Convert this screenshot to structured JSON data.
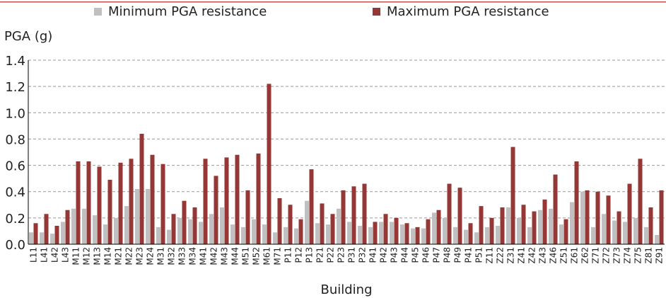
{
  "chart_data": {
    "type": "bar",
    "y_label": "PGA (g)",
    "x_label": "Building",
    "categories": [
      "L11",
      "L41",
      "L42",
      "L43",
      "M11",
      "M12",
      "M13",
      "M14",
      "M21",
      "M22",
      "M23",
      "M24",
      "M31",
      "M32",
      "M33",
      "M34",
      "M41",
      "M42",
      "M43",
      "M44",
      "M51",
      "M52",
      "M61",
      "M71",
      "P11",
      "P12",
      "P13",
      "P21",
      "P22",
      "P23",
      "P31",
      "P32",
      "P41",
      "P42",
      "P43",
      "P44",
      "P45",
      "P46",
      "P47",
      "P48",
      "P49",
      "P41",
      "P51",
      "Z11",
      "Z22",
      "Z31",
      "Z41",
      "Z42",
      "Z43",
      "Z46",
      "Z51",
      "Z61",
      "Z62",
      "Z71",
      "Z72",
      "Z73",
      "Z74",
      "Z75",
      "Z81",
      "Z91"
    ],
    "series": [
      {
        "name": "Minimum PGA resistance",
        "color": "#c0c0c0",
        "values": [
          0.09,
          0.09,
          0.08,
          0.17,
          0.27,
          0.27,
          0.22,
          0.15,
          0.2,
          0.29,
          0.42,
          0.42,
          0.13,
          0.11,
          0.2,
          0.19,
          0.17,
          0.23,
          0.28,
          0.15,
          0.13,
          0.19,
          0.15,
          0.09,
          0.13,
          0.12,
          0.33,
          0.16,
          0.15,
          0.27,
          0.17,
          0.14,
          0.13,
          0.17,
          0.17,
          0.15,
          0.12,
          0.12,
          0.24,
          0.2,
          0.13,
          0.11,
          0.09,
          0.13,
          0.14,
          0.28,
          0.2,
          0.13,
          0.26,
          0.27,
          0.15,
          0.32,
          0.4,
          0.13,
          0.23,
          0.18,
          0.17,
          0.2,
          0.13,
          0.07
        ]
      },
      {
        "name": "Maximum PGA resistance",
        "color": "#953735",
        "values": [
          0.16,
          0.23,
          0.14,
          0.26,
          0.63,
          0.63,
          0.59,
          0.49,
          0.62,
          0.65,
          0.84,
          0.68,
          0.61,
          0.23,
          0.33,
          0.28,
          0.65,
          0.52,
          0.66,
          0.68,
          0.41,
          0.69,
          1.22,
          0.35,
          0.3,
          0.19,
          0.57,
          0.31,
          0.23,
          0.41,
          0.44,
          0.46,
          0.17,
          0.23,
          0.2,
          0.16,
          0.13,
          0.19,
          0.26,
          0.46,
          0.43,
          0.16,
          0.29,
          0.2,
          0.28,
          0.74,
          0.3,
          0.25,
          0.34,
          0.53,
          0.19,
          0.63,
          0.41,
          0.4,
          0.37,
          0.25,
          0.46,
          0.65,
          0.28,
          0.41
        ]
      }
    ],
    "ylim": [
      0,
      1.4
    ],
    "yticks": [
      {
        "value": 0,
        "label": "0.0"
      },
      0.2,
      0.4,
      0.6,
      0.8,
      {
        "value": 1,
        "label": "1.0"
      },
      1.2,
      1.4
    ],
    "grid": true
  }
}
